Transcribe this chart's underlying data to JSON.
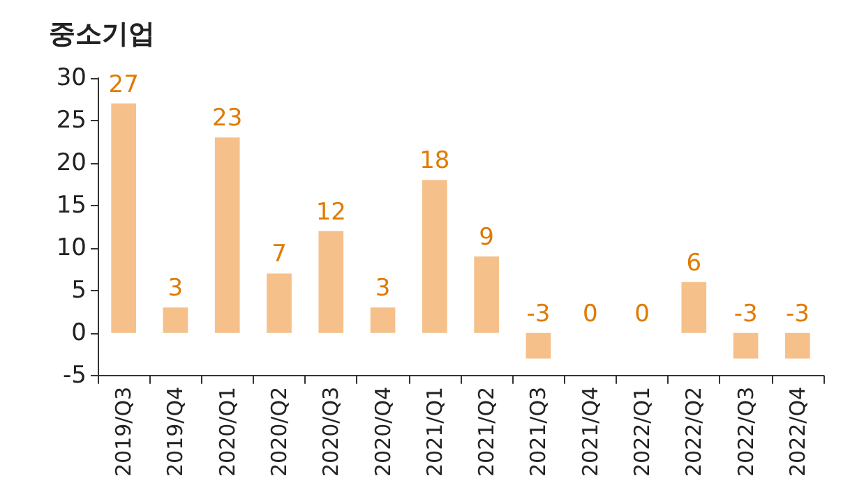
{
  "chart_data": {
    "type": "bar",
    "title": "중소기업",
    "categories": [
      "2019/Q3",
      "2019/Q4",
      "2020/Q1",
      "2020/Q2",
      "2020/Q3",
      "2020/Q4",
      "2021/Q1",
      "2021/Q2",
      "2021/Q3",
      "2021/Q4",
      "2022/Q1",
      "2022/Q2",
      "2022/Q3",
      "2022/Q4"
    ],
    "values": [
      27,
      3,
      23,
      7,
      12,
      3,
      18,
      9,
      -3,
      0,
      0,
      6,
      -3,
      -3
    ],
    "color": "#f5c08a",
    "ylim": [
      -5,
      30
    ],
    "yticks": [
      -5,
      0,
      5,
      10,
      15,
      20,
      25,
      30
    ],
    "data_labels": true,
    "grid": false
  }
}
